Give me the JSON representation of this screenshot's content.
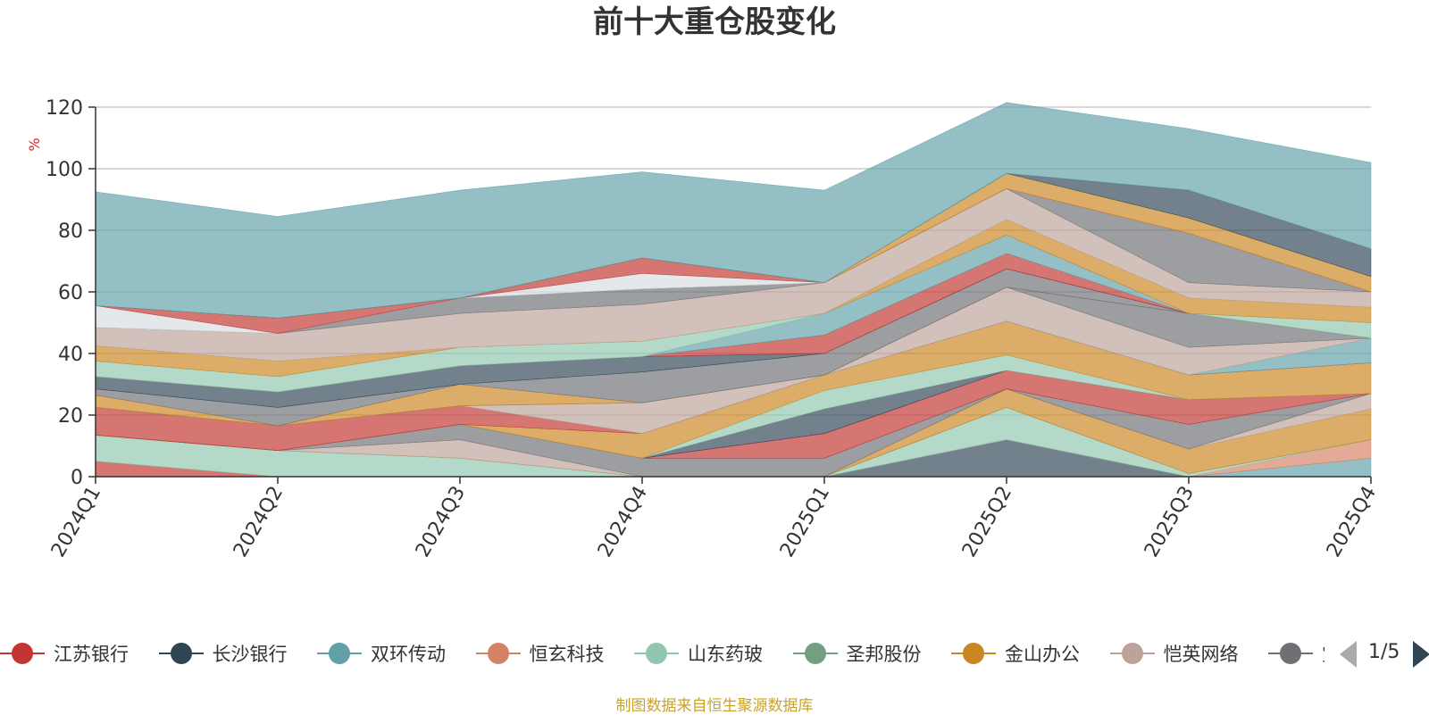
{
  "chart_data": {
    "type": "area",
    "stacked": true,
    "title": "前十大重仓股变化",
    "ylabel": "%",
    "ylim": [
      0,
      120
    ],
    "yticks": [
      0,
      20,
      40,
      60,
      80,
      100,
      120
    ],
    "grid": true,
    "x": [
      "2024Q1",
      "2024Q2",
      "2024Q3",
      "2024Q4",
      "2025Q1",
      "2025Q2",
      "2025Q3",
      "2025Q4"
    ],
    "series": [
      {
        "name": "江苏银行",
        "color": "#c23531",
        "values": [
          5,
          0,
          0,
          0,
          0,
          0,
          0,
          0
        ]
      },
      {
        "name": "长沙银行",
        "color": "#2f4554",
        "values": [
          0,
          0,
          0,
          0,
          0,
          12,
          0,
          0
        ]
      },
      {
        "name": "双环传动",
        "color": "#61a0a8",
        "values": [
          0,
          0,
          0,
          0,
          0,
          0,
          0,
          6
        ]
      },
      {
        "name": "恒玄科技",
        "color": "#d48265",
        "values": [
          0,
          0,
          0,
          0,
          0,
          0,
          0,
          6
        ]
      },
      {
        "name": "山东药玻",
        "color": "#91c7ae",
        "values": [
          8.5,
          8.5,
          6,
          0,
          0,
          10.5,
          1,
          0
        ]
      },
      {
        "name": "圣邦股份",
        "color": "#749f83",
        "values": [
          0,
          0,
          0,
          0,
          0,
          0,
          0,
          0
        ]
      },
      {
        "name": "金山办公",
        "color": "#ca8622",
        "values": [
          0,
          0,
          0,
          0,
          0,
          6,
          8,
          10
        ]
      },
      {
        "name": "恺英网络",
        "color": "#bda29a",
        "values": [
          0,
          0,
          6,
          0,
          0,
          0,
          0,
          5
        ]
      },
      {
        "name": "",
        "color": "#6e7074",
        "values": [
          0,
          0,
          5,
          6,
          6,
          0,
          8,
          0
        ]
      },
      {
        "name": "",
        "color": "#c23531",
        "values": [
          0,
          0,
          0,
          0,
          8,
          6,
          8,
          0
        ]
      },
      {
        "name": "",
        "color": "#2f4554",
        "values": [
          0,
          0,
          0,
          0,
          8,
          0,
          0,
          0
        ]
      },
      {
        "name": "",
        "color": "#91c7ae",
        "values": [
          0,
          0,
          0,
          0,
          6,
          5,
          0,
          0
        ]
      },
      {
        "name": "",
        "color": "#ca8622",
        "values": [
          0,
          0,
          0,
          8,
          5,
          11,
          8,
          10
        ]
      },
      {
        "name": "",
        "color": "#c23531",
        "values": [
          9,
          8,
          6,
          0,
          0,
          0,
          0,
          0
        ]
      },
      {
        "name": "",
        "color": "#61a0a8",
        "values": [
          0,
          0,
          0,
          0,
          0,
          0,
          0,
          8
        ]
      },
      {
        "name": "",
        "color": "#bda29a",
        "values": [
          0,
          0,
          0,
          10,
          0,
          11,
          9,
          0
        ]
      },
      {
        "name": "",
        "color": "#6e7074",
        "values": [
          0,
          0,
          0,
          0,
          0,
          0,
          11,
          0
        ]
      },
      {
        "name": "",
        "color": "#ca8622",
        "values": [
          4,
          0,
          7,
          0,
          0,
          0,
          0,
          0
        ]
      },
      {
        "name": "",
        "color": "#6e7074",
        "values": [
          2,
          6,
          0,
          10,
          7,
          6,
          0,
          0
        ]
      },
      {
        "name": "",
        "color": "#2f4554",
        "values": [
          4,
          5,
          6,
          5,
          0,
          0,
          0,
          0
        ]
      },
      {
        "name": "",
        "color": "#c23531",
        "values": [
          0,
          0,
          0,
          0,
          6,
          5,
          0,
          0
        ]
      },
      {
        "name": "",
        "color": "#61a0a8",
        "values": [
          0,
          0,
          0,
          0,
          7,
          6,
          0,
          0
        ]
      },
      {
        "name": "",
        "color": "#91c7ae",
        "values": [
          5,
          5,
          6,
          5,
          0,
          0,
          0,
          5
        ]
      },
      {
        "name": "",
        "color": "#ca8622",
        "values": [
          5,
          5,
          0,
          0,
          0,
          5,
          5,
          5
        ]
      },
      {
        "name": "",
        "color": "#bda29a",
        "values": [
          6,
          9,
          11,
          12,
          10,
          10,
          5,
          5
        ]
      },
      {
        "name": "",
        "color": "#6e7074",
        "values": [
          0,
          0,
          5,
          5,
          0,
          0,
          16,
          0
        ]
      },
      {
        "name": "",
        "color": "#d7dde2",
        "values": [
          7,
          0,
          0,
          5,
          0,
          0,
          0,
          0
        ]
      },
      {
        "name": "",
        "color": "#c23531",
        "values": [
          0,
          5,
          0,
          5,
          0,
          0,
          0,
          0
        ]
      },
      {
        "name": "",
        "color": "#ca8622",
        "values": [
          0,
          0,
          0,
          0,
          0,
          5,
          5,
          5
        ]
      },
      {
        "name": "",
        "color": "#2f4554",
        "values": [
          0,
          0,
          0,
          0,
          0,
          0,
          9,
          9
        ]
      },
      {
        "name": "",
        "color": "#61a0a8",
        "values": [
          37,
          33,
          35,
          28,
          30,
          23,
          20,
          28
        ]
      }
    ]
  },
  "legend": {
    "items": [
      {
        "label": "江苏银行",
        "color": "#c23531",
        "icon": "circle-marker-icon"
      },
      {
        "label": "长沙银行",
        "color": "#2f4554",
        "icon": "circle-marker-icon"
      },
      {
        "label": "双环传动",
        "color": "#61a0a8",
        "icon": "circle-marker-icon"
      },
      {
        "label": "恒玄科技",
        "color": "#d48265",
        "icon": "circle-marker-icon"
      },
      {
        "label": "山东药玻",
        "color": "#91c7ae",
        "icon": "circle-marker-icon"
      },
      {
        "label": "圣邦股份",
        "color": "#749f83",
        "icon": "circle-marker-icon"
      },
      {
        "label": "金山办公",
        "color": "#ca8622",
        "icon": "circle-marker-icon"
      },
      {
        "label": "恺英网络",
        "color": "#bda29a",
        "icon": "circle-marker-icon"
      },
      {
        "label": "宝",
        "color": "#6e7074",
        "icon": "circle-marker-icon"
      }
    ],
    "page": "1/5",
    "prev_icon": "triangle-left-icon",
    "next_icon": "triangle-right-icon"
  },
  "source_note": "制图数据来自恒生聚源数据库"
}
